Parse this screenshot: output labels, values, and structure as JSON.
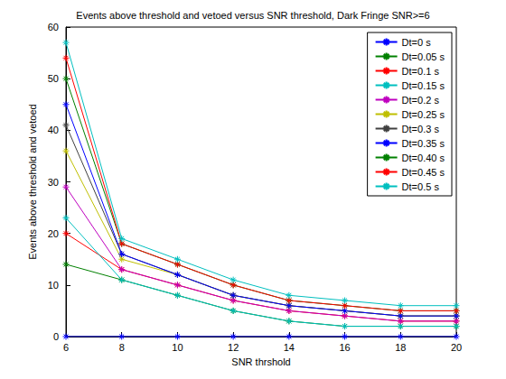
{
  "chart_data": {
    "type": "line",
    "title": "Events above threshold and vetoed versus SNR threshold, Dark Fringe SNR>=6",
    "x_label": "SNR thrshold",
    "y_label": "Events above threshold and vetoed",
    "x": [
      6,
      8,
      10,
      12,
      14,
      16,
      18,
      20
    ],
    "xlim": [
      6,
      20
    ],
    "xticks": [
      6,
      8,
      10,
      12,
      14,
      16,
      18,
      20
    ],
    "ylim": [
      0,
      60
    ],
    "yticks": [
      0,
      10,
      20,
      30,
      40,
      50,
      60
    ],
    "grid": false,
    "legend": "top right",
    "marker": "asterisk",
    "line_style": "solid",
    "series": [
      {
        "name": "Dt=0 s",
        "color": "#0000ff",
        "values": [
          0,
          0,
          0,
          0,
          0,
          0,
          0,
          0
        ]
      },
      {
        "name": "Dt=0.05 s",
        "color": "#008000",
        "values": [
          14,
          11,
          8,
          5,
          3,
          2,
          2,
          2
        ]
      },
      {
        "name": "Dt=0.1 s",
        "color": "#ff0000",
        "values": [
          20,
          13,
          10,
          7,
          5,
          4,
          3,
          3
        ]
      },
      {
        "name": "Dt=0.15 s",
        "color": "#00bfbf",
        "values": [
          23,
          11,
          8,
          5,
          3,
          2,
          2,
          2
        ]
      },
      {
        "name": "Dt=0.2 s",
        "color": "#bf00bf",
        "values": [
          29,
          13,
          10,
          7,
          5,
          4,
          3,
          3
        ]
      },
      {
        "name": "Dt=0.25 s",
        "color": "#bfbf00",
        "values": [
          36,
          15,
          12,
          8,
          6,
          5,
          4,
          4
        ]
      },
      {
        "name": "Dt=0.3 s",
        "color": "#404040",
        "values": [
          41,
          16,
          12,
          8,
          6,
          5,
          4,
          4
        ]
      },
      {
        "name": "Dt=0.35 s",
        "color": "#0000ff",
        "values": [
          45,
          16,
          12,
          8,
          6,
          5,
          4,
          4
        ]
      },
      {
        "name": "Dt=0.40 s",
        "color": "#008000",
        "values": [
          50,
          18,
          14,
          10,
          7,
          6,
          5,
          5
        ]
      },
      {
        "name": "Dt=0.45 s",
        "color": "#ff0000",
        "values": [
          54,
          18,
          14,
          10,
          7,
          6,
          5,
          5
        ]
      },
      {
        "name": "Dt=0.5 s",
        "color": "#00bfbf",
        "values": [
          57,
          19,
          15,
          11,
          8,
          7,
          6,
          6
        ]
      }
    ]
  }
}
